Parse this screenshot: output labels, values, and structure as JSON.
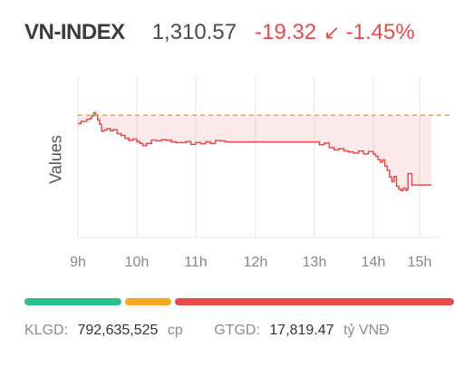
{
  "header": {
    "symbol": "VN-INDEX",
    "price": "1,310.57",
    "change": "-19.32",
    "arrow_icon": "↙",
    "percent": "-1.45%",
    "down_color": "#e84a4a"
  },
  "chart_data": {
    "type": "line",
    "ylabel": "Values",
    "x_tick_labels": [
      "9h",
      "10h",
      "11h",
      "12h",
      "13h",
      "14h",
      "15h"
    ],
    "reference": 1329.89,
    "ylim": [
      1296,
      1338
    ],
    "line_color": "#e84a4a",
    "up_color": "#2dbf8f",
    "reference_color": "#f5a623",
    "series": [
      {
        "points": [
          [
            "09:00",
            1327.6
          ],
          [
            "09:03",
            1328.2
          ],
          [
            "09:06",
            1328.2
          ],
          [
            "09:09",
            1328.8
          ],
          [
            "09:12",
            1329.0
          ],
          [
            "09:14",
            1329.7
          ],
          [
            "09:16",
            1330.6
          ],
          [
            "09:18",
            1330.0
          ],
          [
            "09:20",
            1328.6
          ],
          [
            "09:22",
            1327.4
          ],
          [
            "09:24",
            1325.5
          ],
          [
            "09:27",
            1325.8
          ],
          [
            "09:30",
            1326.2
          ],
          [
            "09:33",
            1325.6
          ],
          [
            "09:36",
            1325.9
          ],
          [
            "09:40",
            1324.8
          ],
          [
            "09:44",
            1324.3
          ],
          [
            "09:48",
            1323.5
          ],
          [
            "09:52",
            1322.9
          ],
          [
            "09:56",
            1323.3
          ],
          [
            "10:00",
            1322.6
          ],
          [
            "10:03",
            1322.1
          ],
          [
            "10:06",
            1321.5
          ],
          [
            "10:10",
            1322.1
          ],
          [
            "10:15",
            1323.0
          ],
          [
            "10:20",
            1322.8
          ],
          [
            "10:25",
            1323.1
          ],
          [
            "10:30",
            1323.0
          ],
          [
            "10:35",
            1322.5
          ],
          [
            "10:40",
            1322.3
          ],
          [
            "10:45",
            1322.3
          ],
          [
            "10:50",
            1322.6
          ],
          [
            "10:55",
            1321.8
          ],
          [
            "11:00",
            1322.3
          ],
          [
            "11:05",
            1322.0
          ],
          [
            "11:10",
            1322.5
          ],
          [
            "11:15",
            1322.1
          ],
          [
            "11:20",
            1322.9
          ],
          [
            "11:25",
            1322.8
          ],
          [
            "11:30",
            1322.5
          ],
          [
            "13:00",
            1322.5
          ],
          [
            "13:05",
            1321.7
          ],
          [
            "13:10",
            1322.2
          ],
          [
            "13:15",
            1320.9
          ],
          [
            "13:20",
            1320.3
          ],
          [
            "13:25",
            1320.6
          ],
          [
            "13:30",
            1320.0
          ],
          [
            "13:35",
            1319.7
          ],
          [
            "13:40",
            1319.4
          ],
          [
            "13:45",
            1320.0
          ],
          [
            "13:50",
            1319.2
          ],
          [
            "13:55",
            1319.8
          ],
          [
            "14:00",
            1319.1
          ],
          [
            "14:03",
            1318.5
          ],
          [
            "14:06",
            1317.6
          ],
          [
            "14:09",
            1316.9
          ],
          [
            "14:12",
            1317.5
          ],
          [
            "14:15",
            1315.8
          ],
          [
            "14:18",
            1314.6
          ],
          [
            "14:21",
            1312.8
          ],
          [
            "14:24",
            1311.5
          ],
          [
            "14:27",
            1312.9
          ],
          [
            "14:30",
            1310.2
          ],
          [
            "14:33",
            1309.4
          ],
          [
            "14:36",
            1309.0
          ],
          [
            "14:39",
            1309.7
          ],
          [
            "14:42",
            1309.1
          ],
          [
            "14:44",
            1309.3
          ],
          [
            "14:45",
            1313.7
          ],
          [
            "14:50",
            1310.57
          ],
          [
            "15:00",
            1310.57
          ]
        ]
      }
    ]
  },
  "session_bar": [
    {
      "name": "advancing",
      "color": "#2dbf8f",
      "fraction": 0.23
    },
    {
      "name": "unchanged",
      "color": "#f5a623",
      "fraction": 0.11
    },
    {
      "name": "declining",
      "color": "#e84a4a",
      "fraction": 0.66
    }
  ],
  "footer": {
    "volume_label": "KLGD:",
    "volume_value": "792,635,525",
    "volume_unit": "cp",
    "value_label": "GTGD:",
    "value_value": "17,819.47",
    "value_unit": "tỷ VNĐ"
  }
}
